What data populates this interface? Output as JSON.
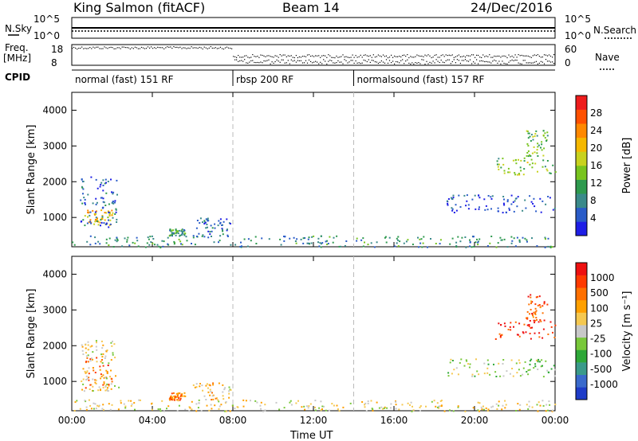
{
  "header": {
    "radar": "King Salmon (fitACF)",
    "beam": "Beam 14",
    "date": "24/Dec/2016"
  },
  "panels": {
    "nsky_label": "N.Sky",
    "nsearch_label": "N.Search",
    "freq_label_top": "Freq.",
    "freq_label_unit": "[MHz]",
    "nave_label": "Nave",
    "cpid_label": "CPID",
    "nsky_ticks": [
      "10^5",
      "10^0"
    ],
    "nsearch_ticks": [
      "10^5",
      "10^0"
    ],
    "freq_ticks": [
      "18",
      "8"
    ],
    "nave_ticks": [
      "60",
      "0"
    ],
    "cpid_segments": [
      {
        "label": "normal (fast) 151 RF",
        "start": 0,
        "end": 8
      },
      {
        "label": "rbsp 200 RF",
        "start": 8,
        "end": 14
      },
      {
        "label": "normalsound (fast) 157 RF",
        "start": 14,
        "end": 24
      }
    ]
  },
  "chart_data": [
    {
      "type": "heatmap",
      "name": "power",
      "ylabel": "Slant Range [km]",
      "xlabel": "",
      "xlim": [
        0,
        24
      ],
      "ylim": [
        180,
        4500
      ],
      "y_ticks": [
        "1000",
        "2000",
        "3000",
        "4000"
      ],
      "y_tick_values": [
        1000,
        2000,
        3000,
        4000
      ],
      "colorbar": {
        "label": "Power [dB]",
        "ticks": [
          "4",
          "8",
          "12",
          "16",
          "20",
          "24",
          "28"
        ],
        "colors": [
          "#1e1ee6",
          "#2a5cc8",
          "#3a8a8a",
          "#2e9a4e",
          "#78c41e",
          "#c8d21e",
          "#f5b800",
          "#ff8800",
          "#ff5000",
          "#ee1c1c"
        ]
      },
      "echo_regions": [
        {
          "x0": 0.6,
          "x1": 2.0,
          "y0": 800,
          "y1": 1250,
          "intensity": 0.65
        },
        {
          "x0": 0.4,
          "x1": 2.3,
          "y0": 750,
          "y1": 2200,
          "intensity": 0.15
        },
        {
          "x0": 4.8,
          "x1": 5.6,
          "y0": 500,
          "y1": 700,
          "intensity": 0.3
        },
        {
          "x0": 6.0,
          "x1": 7.9,
          "y0": 500,
          "y1": 1000,
          "intensity": 0.15
        },
        {
          "x0": 0.0,
          "x1": 24.0,
          "y0": 180,
          "y1": 500,
          "intensity": 0.25
        },
        {
          "x0": 18.6,
          "x1": 24.0,
          "y0": 1150,
          "y1": 1650,
          "intensity": 0.05
        },
        {
          "x0": 21.0,
          "x1": 24.0,
          "y0": 2200,
          "y1": 2700,
          "intensity": 0.45
        },
        {
          "x0": 22.5,
          "x1": 23.6,
          "y0": 2700,
          "y1": 3450,
          "intensity": 0.4
        }
      ]
    },
    {
      "type": "heatmap",
      "name": "velocity",
      "ylabel": "Slant Range [km]",
      "xlabel": "Time UT",
      "xlim": [
        0,
        24
      ],
      "ylim": [
        180,
        4500
      ],
      "x_ticks": [
        "00:00",
        "04:00",
        "08:00",
        "12:00",
        "16:00",
        "20:00",
        "00:00"
      ],
      "x_tick_values": [
        0,
        4,
        8,
        12,
        16,
        20,
        24
      ],
      "y_ticks": [
        "1000",
        "2000",
        "3000",
        "4000"
      ],
      "y_tick_values": [
        1000,
        2000,
        3000,
        4000
      ],
      "colorbar": {
        "label": "Velocity [m s⁻¹]",
        "ticks": [
          "1000",
          "500",
          "100",
          "25",
          "-25",
          "-100",
          "-500",
          "-1000"
        ],
        "colors": [
          "#1e3cc8",
          "#3a6acc",
          "#3a9a8a",
          "#2ea838",
          "#78c83a",
          "#c8c8c8",
          "#f5c850",
          "#ffa000",
          "#ff7000",
          "#ff3a00",
          "#ee1010"
        ]
      },
      "echo_regions": [
        {
          "x0": 0.6,
          "x1": 2.0,
          "y0": 750,
          "y1": 1700,
          "intensity": 0.8
        },
        {
          "x0": 0.4,
          "x1": 2.3,
          "y0": 750,
          "y1": 2200,
          "intensity": 0.55
        },
        {
          "x0": 4.8,
          "x1": 5.6,
          "y0": 500,
          "y1": 700,
          "intensity": 0.8
        },
        {
          "x0": 6.0,
          "x1": 7.9,
          "y0": 500,
          "y1": 1000,
          "intensity": 0.6
        },
        {
          "x0": 0.0,
          "x1": 24.0,
          "y0": 180,
          "y1": 500,
          "intensity": 0.55
        },
        {
          "x0": 18.6,
          "x1": 24.0,
          "y0": 1150,
          "y1": 1650,
          "intensity": 0.45
        },
        {
          "x0": 21.0,
          "x1": 24.0,
          "y0": 2200,
          "y1": 2700,
          "intensity": 0.95
        },
        {
          "x0": 22.5,
          "x1": 23.6,
          "y0": 2700,
          "y1": 3450,
          "intensity": 0.9
        }
      ]
    }
  ]
}
